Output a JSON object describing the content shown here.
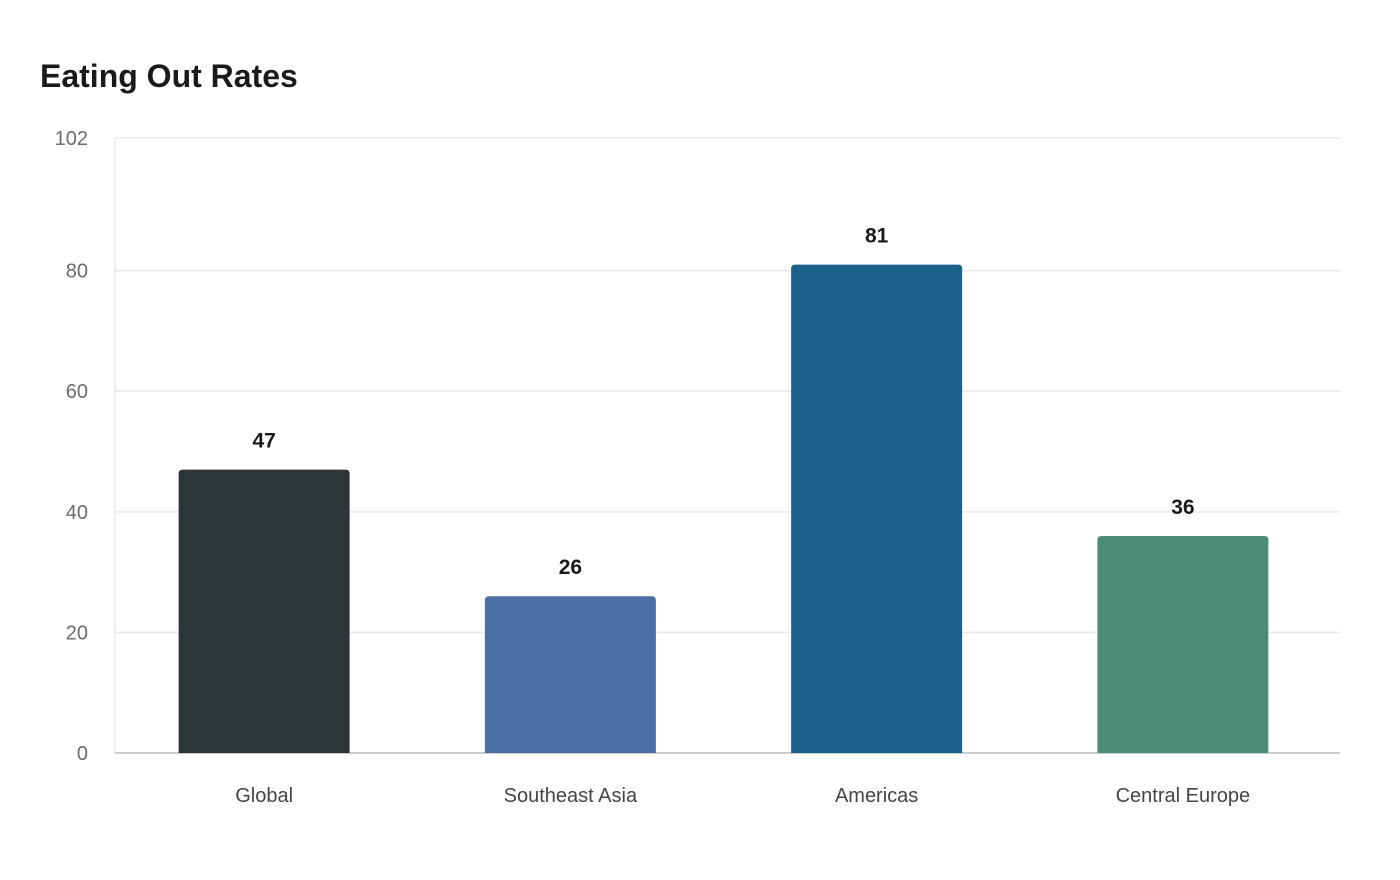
{
  "chart_data": {
    "type": "bar",
    "title": "Eating Out Rates",
    "xlabel": "",
    "ylabel": "",
    "categories": [
      "Global",
      "Southeast Asia",
      "Americas",
      "Central Europe"
    ],
    "values": [
      47,
      26,
      81,
      36
    ],
    "value_labels": [
      "47",
      "26",
      "81",
      "36"
    ],
    "bar_colors": [
      "#2d3537",
      "#4a6fa5",
      "#1a6088",
      "#4e8c7a"
    ],
    "ylim": [
      0,
      102
    ],
    "yticks": [
      0,
      20,
      40,
      60,
      80,
      102
    ],
    "ytick_labels": [
      "0",
      "20",
      "40",
      "60",
      "80",
      "102"
    ],
    "grid": true,
    "legend": "none",
    "colors": {
      "grid": "#e8e8e8",
      "axis": "#cccccc"
    }
  }
}
